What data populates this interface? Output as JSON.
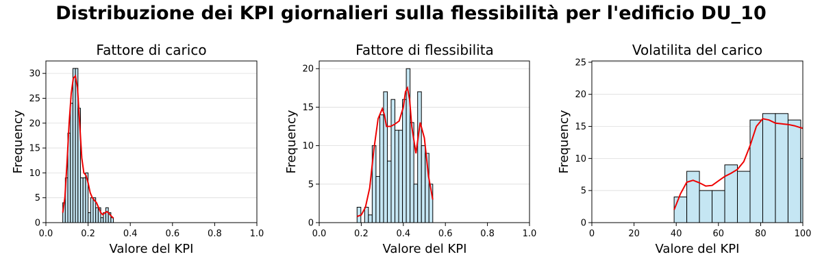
{
  "figure": {
    "suptitle": "Distribuzione dei KPI giornalieri sulla flessibilità per l'edificio DU_10"
  },
  "colors": {
    "bar_fill": "#c5e6f3",
    "bar_edge": "#000000",
    "kde": "#ee0000",
    "grid": "#dcdcdc"
  },
  "chart_data": [
    {
      "type": "bar",
      "title": "Fattore di carico",
      "xlabel": "Valore del KPI",
      "ylabel": "Frequency",
      "xlim": [
        0,
        1
      ],
      "ylim": [
        0,
        32.5
      ],
      "xticks": [
        "0.0",
        "0.2",
        "0.4",
        "0.6",
        "0.8",
        "1.0"
      ],
      "xtick_values": [
        0,
        0.2,
        0.4,
        0.6,
        0.8,
        1.0
      ],
      "yticks": [
        0,
        5,
        10,
        15,
        20,
        25,
        30
      ],
      "grid": "y",
      "bins": [
        {
          "x0": 0.08,
          "x1": 0.092,
          "count": 4
        },
        {
          "x0": 0.092,
          "x1": 0.104,
          "count": 9
        },
        {
          "x0": 0.104,
          "x1": 0.116,
          "count": 18
        },
        {
          "x0": 0.116,
          "x1": 0.128,
          "count": 24
        },
        {
          "x0": 0.128,
          "x1": 0.14,
          "count": 31
        },
        {
          "x0": 0.14,
          "x1": 0.152,
          "count": 31
        },
        {
          "x0": 0.152,
          "x1": 0.164,
          "count": 23
        },
        {
          "x0": 0.164,
          "x1": 0.176,
          "count": 9
        },
        {
          "x0": 0.176,
          "x1": 0.188,
          "count": 9
        },
        {
          "x0": 0.188,
          "x1": 0.2,
          "count": 10
        },
        {
          "x0": 0.2,
          "x1": 0.212,
          "count": 2
        },
        {
          "x0": 0.212,
          "x1": 0.224,
          "count": 5
        },
        {
          "x0": 0.224,
          "x1": 0.236,
          "count": 5
        },
        {
          "x0": 0.236,
          "x1": 0.248,
          "count": 3
        },
        {
          "x0": 0.248,
          "x1": 0.26,
          "count": 3
        },
        {
          "x0": 0.26,
          "x1": 0.272,
          "count": 1
        },
        {
          "x0": 0.272,
          "x1": 0.284,
          "count": 2
        },
        {
          "x0": 0.284,
          "x1": 0.296,
          "count": 3
        },
        {
          "x0": 0.296,
          "x1": 0.308,
          "count": 2
        },
        {
          "x0": 0.308,
          "x1": 0.32,
          "count": 1
        }
      ],
      "kde": {
        "x": [
          0.08,
          0.09,
          0.1,
          0.11,
          0.12,
          0.13,
          0.14,
          0.15,
          0.16,
          0.17,
          0.18,
          0.19,
          0.2,
          0.21,
          0.22,
          0.23,
          0.24,
          0.25,
          0.26,
          0.27,
          0.28,
          0.29,
          0.3,
          0.31,
          0.32
        ],
        "y": [
          2,
          5,
          12,
          20,
          26,
          29,
          29.5,
          27,
          20,
          13,
          10,
          9.5,
          8,
          6,
          5,
          4.5,
          4,
          3,
          2,
          1.6,
          2,
          2.2,
          1.8,
          1.3,
          0.9
        ]
      }
    },
    {
      "type": "bar",
      "title": "Fattore di flessibilita",
      "xlabel": "Valore del KPI",
      "ylabel": "Frequency",
      "xlim": [
        0,
        1
      ],
      "ylim": [
        0,
        21
      ],
      "xticks": [
        "0.0",
        "0.2",
        "0.4",
        "0.6",
        "0.8",
        "1.0"
      ],
      "xtick_values": [
        0,
        0.2,
        0.4,
        0.6,
        0.8,
        1.0
      ],
      "yticks": [
        0,
        5,
        10,
        15,
        20
      ],
      "grid": "y",
      "bins": [
        {
          "x0": 0.18,
          "x1": 0.198,
          "count": 2
        },
        {
          "x0": 0.198,
          "x1": 0.216,
          "count": 0
        },
        {
          "x0": 0.216,
          "x1": 0.234,
          "count": 2
        },
        {
          "x0": 0.234,
          "x1": 0.252,
          "count": 1
        },
        {
          "x0": 0.252,
          "x1": 0.27,
          "count": 10
        },
        {
          "x0": 0.27,
          "x1": 0.288,
          "count": 6
        },
        {
          "x0": 0.288,
          "x1": 0.306,
          "count": 14
        },
        {
          "x0": 0.306,
          "x1": 0.324,
          "count": 17
        },
        {
          "x0": 0.324,
          "x1": 0.342,
          "count": 8
        },
        {
          "x0": 0.342,
          "x1": 0.36,
          "count": 16
        },
        {
          "x0": 0.36,
          "x1": 0.378,
          "count": 12
        },
        {
          "x0": 0.378,
          "x1": 0.396,
          "count": 12
        },
        {
          "x0": 0.396,
          "x1": 0.414,
          "count": 16
        },
        {
          "x0": 0.414,
          "x1": 0.432,
          "count": 20
        },
        {
          "x0": 0.432,
          "x1": 0.45,
          "count": 13
        },
        {
          "x0": 0.45,
          "x1": 0.468,
          "count": 5
        },
        {
          "x0": 0.468,
          "x1": 0.486,
          "count": 17
        },
        {
          "x0": 0.486,
          "x1": 0.504,
          "count": 10
        },
        {
          "x0": 0.504,
          "x1": 0.522,
          "count": 9
        },
        {
          "x0": 0.522,
          "x1": 0.54,
          "count": 5
        }
      ],
      "kde": {
        "x": [
          0.18,
          0.2,
          0.22,
          0.24,
          0.26,
          0.28,
          0.3,
          0.31,
          0.32,
          0.34,
          0.36,
          0.38,
          0.4,
          0.41,
          0.42,
          0.43,
          0.44,
          0.46,
          0.47,
          0.48,
          0.5,
          0.52,
          0.54
        ],
        "y": [
          0.8,
          1,
          2,
          4.5,
          9.5,
          13.5,
          14.8,
          14,
          12.5,
          12.5,
          12.8,
          13.2,
          15,
          17,
          17.5,
          16,
          12.5,
          9,
          11,
          13,
          11,
          6,
          3
        ]
      }
    },
    {
      "type": "bar",
      "title": "Volatilita del carico",
      "xlabel": "Valore del KPI",
      "ylabel": "Frequency",
      "xlim": [
        0,
        100
      ],
      "ylim": [
        0,
        25.2
      ],
      "xticks": [
        "0",
        "20",
        "40",
        "60",
        "80",
        "100"
      ],
      "xtick_values": [
        0,
        20,
        40,
        60,
        80,
        100
      ],
      "yticks": [
        0,
        5,
        10,
        15,
        20,
        25
      ],
      "grid": "y",
      "bins": [
        {
          "x0": 39,
          "x1": 45,
          "count": 4
        },
        {
          "x0": 45,
          "x1": 51,
          "count": 8
        },
        {
          "x0": 51,
          "x1": 57,
          "count": 5
        },
        {
          "x0": 57,
          "x1": 63,
          "count": 5
        },
        {
          "x0": 63,
          "x1": 69,
          "count": 9
        },
        {
          "x0": 69,
          "x1": 75,
          "count": 8
        },
        {
          "x0": 75,
          "x1": 81,
          "count": 16
        },
        {
          "x0": 81,
          "x1": 87,
          "count": 17
        },
        {
          "x0": 87,
          "x1": 93,
          "count": 17
        },
        {
          "x0": 93,
          "x1": 99,
          "count": 16
        },
        {
          "x0": 99,
          "x1": 105,
          "count": 10
        }
      ],
      "kde": {
        "x": [
          39,
          42,
          45,
          48,
          51,
          54,
          57,
          60,
          63,
          66,
          69,
          72,
          75,
          78,
          81,
          84,
          87,
          90,
          93,
          96,
          99,
          100
        ],
        "y": [
          2,
          4.5,
          6.3,
          6.6,
          6.2,
          5.7,
          5.8,
          6.5,
          7.2,
          7.7,
          8.3,
          9.5,
          12,
          15,
          16.2,
          16,
          15.5,
          15.4,
          15.3,
          15.1,
          14.8,
          14.7
        ]
      }
    }
  ]
}
